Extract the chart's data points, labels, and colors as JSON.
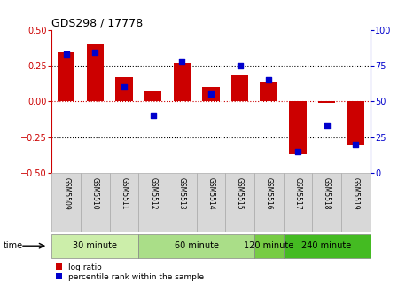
{
  "title": "GDS298 / 17778",
  "samples": [
    "GSM5509",
    "GSM5510",
    "GSM5511",
    "GSM5512",
    "GSM5513",
    "GSM5514",
    "GSM5515",
    "GSM5516",
    "GSM5517",
    "GSM5518",
    "GSM5519"
  ],
  "log_ratio": [
    0.34,
    0.4,
    0.17,
    0.07,
    0.27,
    0.1,
    0.19,
    0.13,
    -0.37,
    -0.01,
    -0.3
  ],
  "percentile_rank": [
    83,
    84,
    60,
    40,
    78,
    55,
    75,
    65,
    15,
    33,
    20
  ],
  "bar_color": "#cc0000",
  "dot_color": "#0000cc",
  "ylim_left": [
    -0.5,
    0.5
  ],
  "ylim_right": [
    0,
    100
  ],
  "yticks_left": [
    -0.5,
    -0.25,
    0,
    0.25,
    0.5
  ],
  "yticks_right": [
    0,
    25,
    50,
    75,
    100
  ],
  "hline_dotted": [
    -0.25,
    0.25
  ],
  "hline0_color": "#cc0000",
  "group_boundaries": [
    {
      "start": 0,
      "end": 2,
      "label": "30 minute",
      "color": "#cceeaa"
    },
    {
      "start": 3,
      "end": 6,
      "label": "60 minute",
      "color": "#aade88"
    },
    {
      "start": 7,
      "end": 7,
      "label": "120 minute",
      "color": "#77cc44"
    },
    {
      "start": 8,
      "end": 10,
      "label": "240 minute",
      "color": "#44bb22"
    }
  ],
  "xlabel_bg": "#d8d8d8",
  "xlabel_border": "#aaaaaa",
  "time_label": "time",
  "legend_items": [
    {
      "color": "#cc0000",
      "label": "log ratio"
    },
    {
      "color": "#0000cc",
      "label": "percentile rank within the sample"
    }
  ]
}
